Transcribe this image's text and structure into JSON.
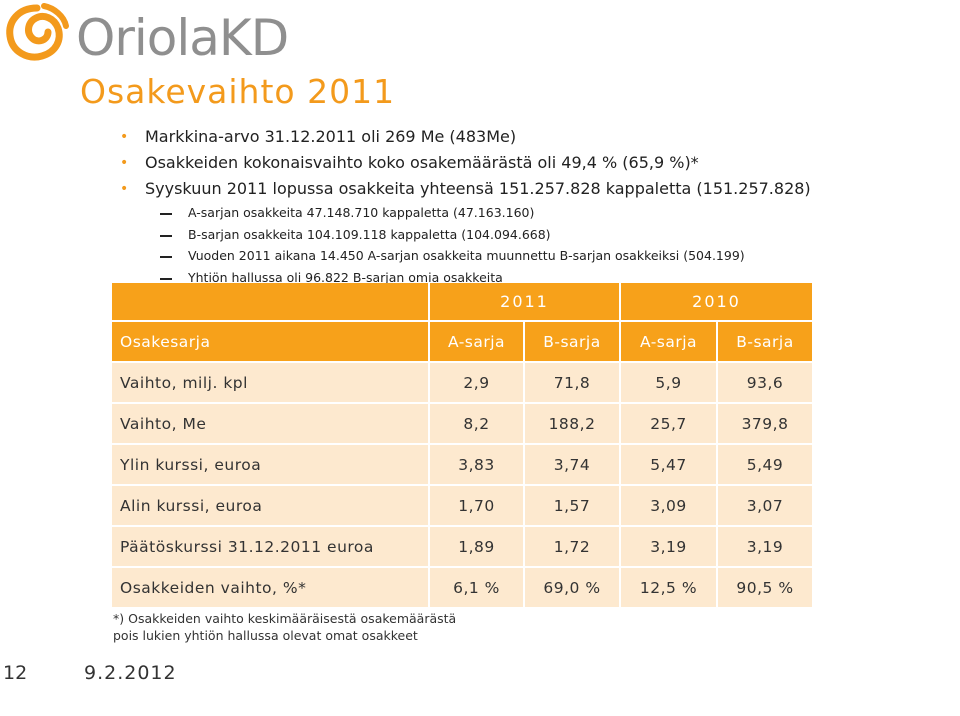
{
  "logo": {
    "text": "OriolaKD",
    "primary_color": "#f39a1c",
    "text_color": "#8f8f8f"
  },
  "title": "Osakevaihto 2011",
  "bullets": [
    {
      "text": "Markkina-arvo 31.12.2011 oli 269 Me (483Me)"
    },
    {
      "text": "Osakkeiden kokonaisvaihto koko osakemäärästä oli 49,4 % (65,9 %)*"
    },
    {
      "text": "Syyskuun 2011 lopussa osakkeita yhteensä 151.257.828 kappaletta (151.257.828)",
      "sub": [
        "A-sarjan osakkeita 47.148.710 kappaletta (47.163.160)",
        "B-sarjan osakkeita 104.109.118 kappaletta (104.094.668)",
        "Vuoden 2011 aikana 14.450 A-sarjan osakkeita muunnettu B-sarjan osakkeiksi (504.199)",
        "Yhtiön hallussa oli 96.822 B-sarjan omia osakkeita"
      ]
    }
  ],
  "table": {
    "years": [
      "2011",
      "2010"
    ],
    "headers": [
      "Osakesarja",
      "A-sarja",
      "B-sarja",
      "A-sarja",
      "B-sarja"
    ],
    "rows": [
      [
        "Vaihto, milj. kpl",
        "2,9",
        "71,8",
        "5,9",
        "93,6"
      ],
      [
        "Vaihto, Me",
        "8,2",
        "188,2",
        "25,7",
        "379,8"
      ],
      [
        "Ylin kurssi, euroa",
        "3,83",
        "3,74",
        "5,47",
        "5,49"
      ],
      [
        "Alin kurssi, euroa",
        "1,70",
        "1,57",
        "3,09",
        "3,07"
      ],
      [
        "Päätöskurssi 31.12.2011 euroa",
        "1,89",
        "1,72",
        "3,19",
        "3,19"
      ],
      [
        "Osakkeiden vaihto, %*",
        "6,1 %",
        "69,0 %",
        "12,5 %",
        "90,5 %"
      ]
    ],
    "header_color": "#f7a11a",
    "row_color": "#fde9cf"
  },
  "footnote": [
    "*) Osakkeiden vaihto keskimääräisestä osakemäärästä",
    "pois lukien yhtiön hallussa olevat omat osakkeet"
  ],
  "page_number": "12",
  "date": "9.2.2012"
}
